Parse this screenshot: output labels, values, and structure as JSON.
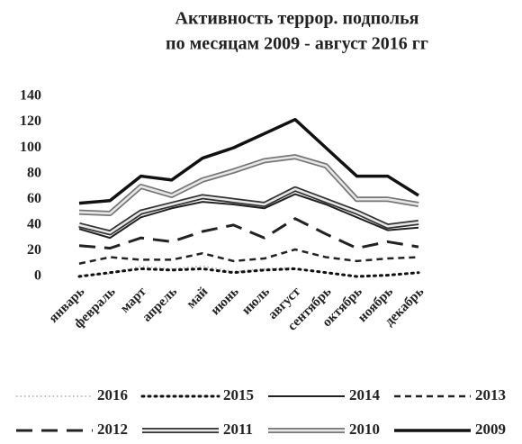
{
  "chart_data": {
    "type": "line",
    "title": [
      "Активность террор. подполья",
      "по месяцам 2009 - август 2016 гг"
    ],
    "categories": [
      "январь",
      "февраль",
      "март",
      "апрель",
      "май",
      "июнь",
      "июль",
      "август",
      "сентябрь",
      "октябрь",
      "ноябрь",
      "декабрь"
    ],
    "ylim": [
      0,
      140
    ],
    "yticks": [
      0,
      20,
      40,
      60,
      80,
      100,
      120,
      140
    ],
    "grid": false,
    "legend": "bottom",
    "series": [
      {
        "name": "2016",
        "color": "#aaaaaa",
        "style": "finedot",
        "values": [
          1,
          2,
          8,
          6,
          8,
          4,
          6,
          7,
          null,
          null,
          null,
          null
        ]
      },
      {
        "name": "2015",
        "color": "#111111",
        "style": "dotted",
        "values": [
          0,
          3,
          6,
          5,
          6,
          3,
          5,
          6,
          3,
          0,
          1,
          3
        ]
      },
      {
        "name": "2014",
        "color": "#222222",
        "style": "solid",
        "values": [
          37,
          30,
          46,
          53,
          58,
          56,
          53,
          64,
          56,
          46,
          36,
          38
        ]
      },
      {
        "name": "2013",
        "color": "#222222",
        "style": "dashed",
        "values": [
          10,
          15,
          13,
          13,
          18,
          12,
          14,
          21,
          15,
          12,
          14,
          15
        ]
      },
      {
        "name": "2012",
        "color": "#222222",
        "style": "longdash",
        "values": [
          24,
          22,
          30,
          27,
          35,
          40,
          30,
          45,
          33,
          22,
          27,
          23
        ]
      },
      {
        "name": "2011",
        "color": "#333333",
        "style": "double",
        "values": [
          40,
          34,
          50,
          56,
          62,
          59,
          56,
          68,
          59,
          50,
          39,
          42
        ]
      },
      {
        "name": "2010",
        "color": "#777777",
        "style": "double",
        "values": [
          50,
          49,
          70,
          63,
          75,
          82,
          90,
          93,
          86,
          60,
          60,
          56
        ]
      },
      {
        "name": "2009",
        "color": "#111111",
        "style": "thick",
        "values": [
          57,
          59,
          78,
          75,
          92,
          100,
          111,
          122,
          100,
          78,
          78,
          63
        ]
      }
    ]
  }
}
